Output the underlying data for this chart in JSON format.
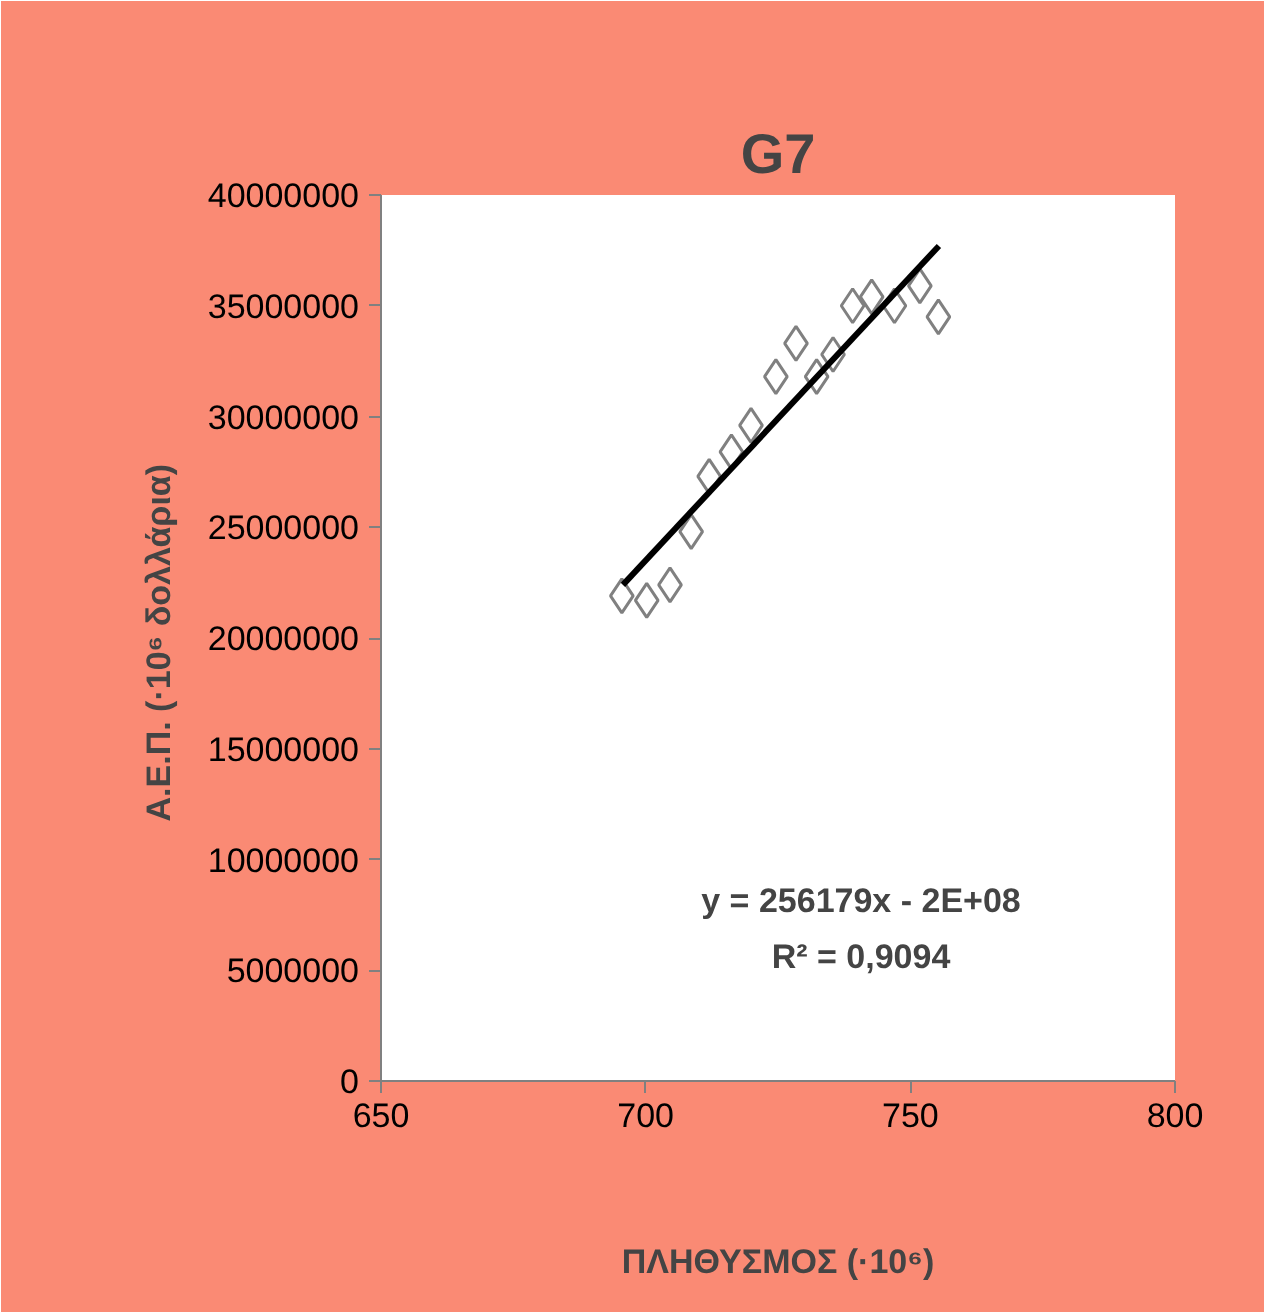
{
  "chart_data": {
    "type": "scatter",
    "title": "G7",
    "xlabel": "ΠΛΗΘΥΣΜΟΣ (·10⁶)",
    "ylabel": "Α.Ε.Π.  (·10⁶ δολλάρια)",
    "marker": "diamond",
    "grid": false,
    "xlim": [
      650,
      800
    ],
    "xticks": [
      650,
      700,
      750,
      800
    ],
    "ylim": [
      0,
      40000000
    ],
    "yticks": [
      0,
      5000000,
      10000000,
      15000000,
      20000000,
      25000000,
      30000000,
      35000000,
      40000000
    ],
    "annotations": [
      "y = 256179x - 2E+08",
      "R² = 0,9094"
    ],
    "series": [
      {
        "type": "scatter",
        "color": "#808080",
        "x": [
          695.5,
          700.2,
          704.6,
          708.6,
          712.0,
          716.2,
          719.9,
          724.6,
          728.4,
          732.3,
          735.4,
          739.1,
          742.7,
          747.0,
          751.8,
          755.3
        ],
        "values": [
          21900000.0,
          21700000.0,
          22400000.0,
          24800000.0,
          27300000.0,
          28400000.0,
          29600000.0,
          31800000.0,
          33300000.0,
          31800000.0,
          32800000.0,
          35000000.0,
          35400000.0,
          35000000.0,
          35900000.0,
          34500000.0
        ]
      },
      {
        "type": "line",
        "color": "#000000",
        "marker": "none",
        "x": [
          695.7,
          755.4
        ],
        "values": [
          22400000.0,
          37700000.0
        ]
      }
    ]
  }
}
